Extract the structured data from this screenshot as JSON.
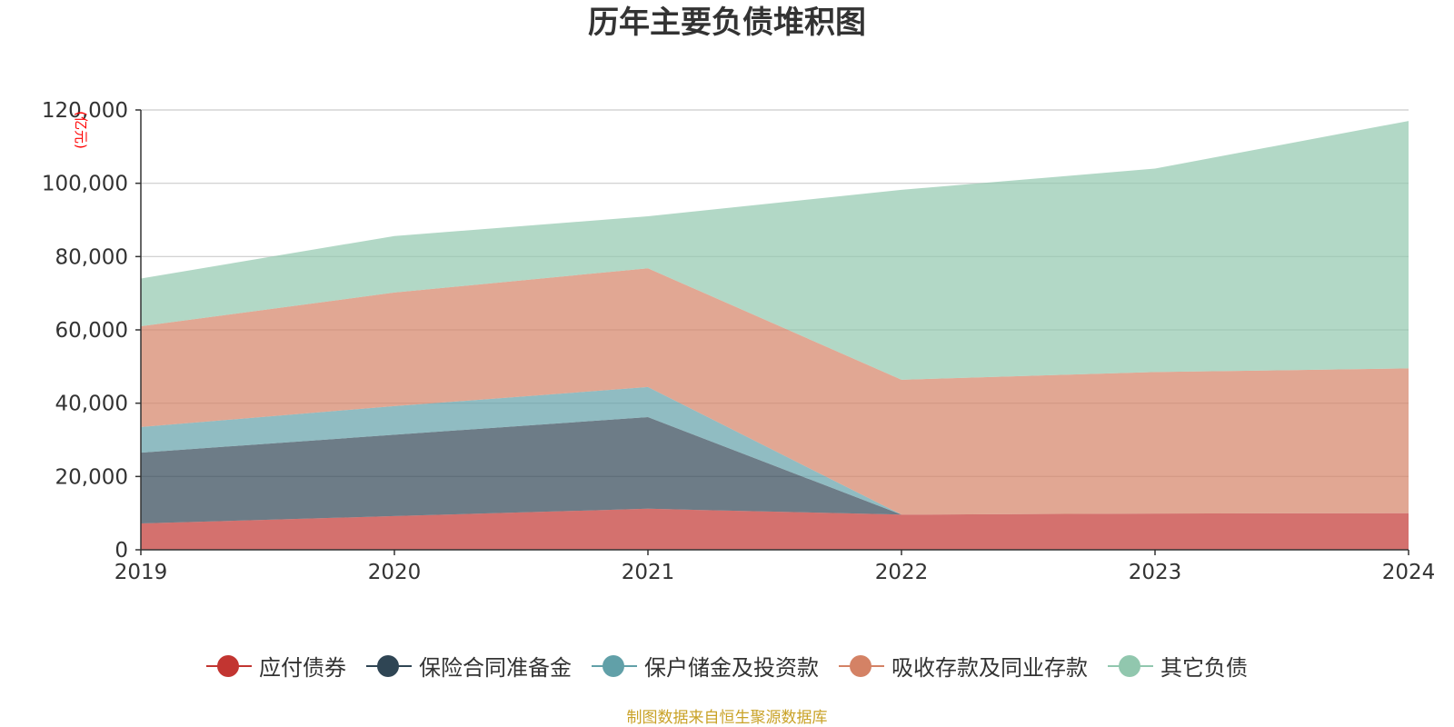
{
  "chart_data": {
    "type": "area",
    "stacked": true,
    "title": "历年主要负债堆积图",
    "ylabel": "(亿元)",
    "xlabel": "",
    "categories": [
      "2019",
      "2020",
      "2021",
      "2022",
      "2023",
      "2024"
    ],
    "ylim": [
      0,
      120000
    ],
    "yticks": [
      0,
      20000,
      40000,
      60000,
      80000,
      100000,
      120000
    ],
    "ytick_labels": [
      "0",
      "20,000",
      "40,000",
      "60,000",
      "80,000",
      "100,000",
      "120,000"
    ],
    "grid": true,
    "legend_position": "bottom",
    "series": [
      {
        "name": "应付债券",
        "color": "#c23531",
        "values": [
          7200,
          9200,
          11200,
          9600,
          9900,
          10000
        ]
      },
      {
        "name": "保险合同准备金",
        "color": "#2f4554",
        "values": [
          19300,
          22200,
          25000,
          0,
          0,
          0
        ]
      },
      {
        "name": "保户储金及投资款",
        "color": "#61a0a8",
        "values": [
          7000,
          7800,
          8200,
          0,
          0,
          0
        ]
      },
      {
        "name": "吸收存款及同业存款",
        "color": "#d48265",
        "values": [
          27500,
          31000,
          32400,
          36800,
          38600,
          39500
        ]
      },
      {
        "name": "其它负债",
        "color": "#91c7ae",
        "values": [
          13000,
          15400,
          14200,
          51800,
          55500,
          67500
        ]
      }
    ],
    "source_note": "制图数据来自恒生聚源数据库"
  }
}
